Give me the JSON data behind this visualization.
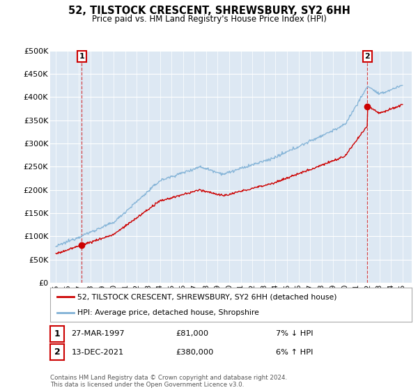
{
  "title": "52, TILSTOCK CRESCENT, SHREWSBURY, SY2 6HH",
  "subtitle": "Price paid vs. HM Land Registry's House Price Index (HPI)",
  "sale1_price": 81000,
  "sale1_label": "1",
  "sale1_hpi_diff": "7% ↓ HPI",
  "sale1_date_str": "27-MAR-1997",
  "sale1_year": 1997.23,
  "sale2_price": 380000,
  "sale2_label": "2",
  "sale2_hpi_diff": "6% ↑ HPI",
  "sale2_date_str": "13-DEC-2021",
  "sale2_year": 2021.95,
  "ylim": [
    0,
    500000
  ],
  "yticks": [
    0,
    50000,
    100000,
    150000,
    200000,
    250000,
    300000,
    350000,
    400000,
    450000,
    500000
  ],
  "red_line_color": "#cc0000",
  "blue_line_color": "#7eb0d5",
  "bg_color": "#dde8f3",
  "grid_color": "#ffffff",
  "fig_bg": "#ffffff",
  "legend_label_red": "52, TILSTOCK CRESCENT, SHREWSBURY, SY2 6HH (detached house)",
  "legend_label_blue": "HPI: Average price, detached house, Shropshire",
  "footer": "Contains HM Land Registry data © Crown copyright and database right 2024.\nThis data is licensed under the Open Government Licence v3.0.",
  "x_start_year": 1995,
  "x_end_year": 2025
}
